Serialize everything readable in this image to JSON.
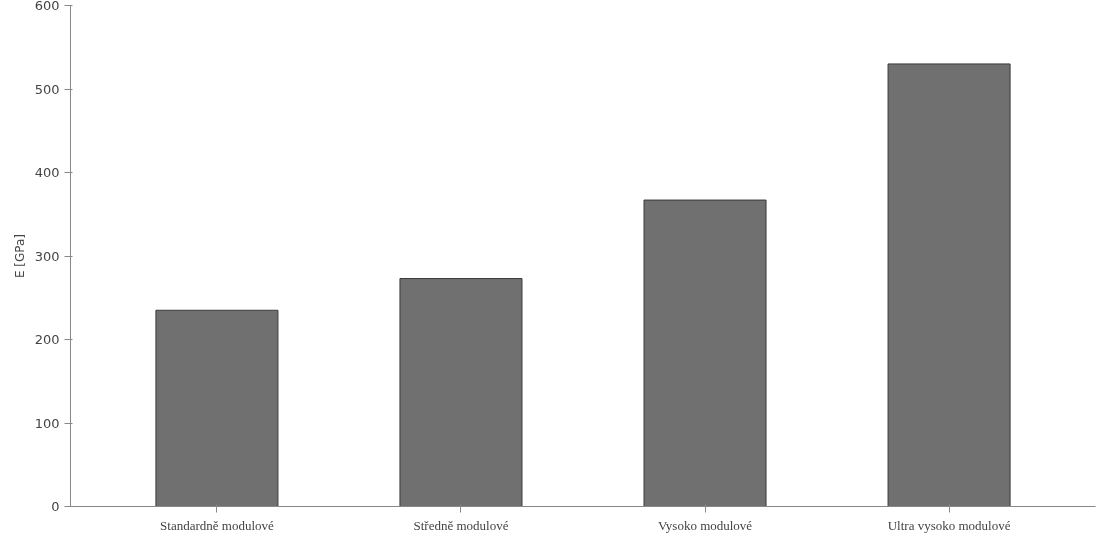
{
  "chart_data": {
    "type": "bar",
    "ylabel": "E [GPa]",
    "categories": [
      "Standardně modulové",
      "Středně modulové",
      "Vysoko modulové",
      "Ultra vysoko modulové"
    ],
    "values": [
      235,
      273,
      367,
      530
    ],
    "color": "#707070",
    "ylim": [
      0,
      600
    ],
    "yticks": [
      0,
      100,
      200,
      300,
      400,
      500,
      600
    ],
    "grid": false
  }
}
